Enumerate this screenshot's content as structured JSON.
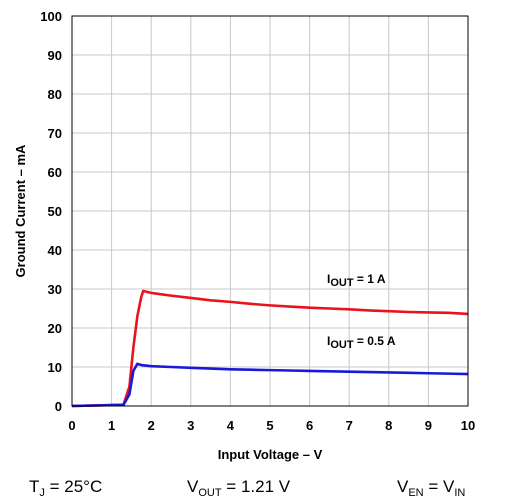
{
  "chart_data": {
    "type": "line",
    "xlabel": "Input Voltage – V",
    "ylabel": "Ground Current – mA",
    "xlim": [
      0,
      10
    ],
    "ylim": [
      0,
      100
    ],
    "x_ticks": [
      0,
      1,
      2,
      3,
      4,
      5,
      6,
      7,
      8,
      9,
      10
    ],
    "y_ticks": [
      0,
      10,
      20,
      30,
      40,
      50,
      60,
      70,
      80,
      90,
      100
    ],
    "grid": true,
    "series": [
      {
        "name_main": "I",
        "name_sub": "OUT",
        "name_rest": " = 1 A",
        "color": "#e8141b",
        "x": [
          0,
          1.3,
          1.45,
          1.55,
          1.65,
          1.75,
          1.8,
          2.0,
          2.5,
          3.0,
          3.5,
          4.0,
          4.5,
          5.0,
          5.5,
          6.0,
          6.5,
          7.0,
          7.5,
          8.0,
          8.5,
          9.0,
          9.5,
          10.0
        ],
        "y": [
          0,
          0.3,
          5,
          15,
          23,
          28,
          29.5,
          29.0,
          28.3,
          27.7,
          27.1,
          26.7,
          26.2,
          25.8,
          25.5,
          25.2,
          25.0,
          24.8,
          24.5,
          24.3,
          24.1,
          24.0,
          23.9,
          23.6
        ]
      },
      {
        "name_main": "I",
        "name_sub": "OUT",
        "name_rest": " = 0.5 A",
        "color": "#1a1ad6",
        "x": [
          0,
          1.3,
          1.45,
          1.55,
          1.65,
          1.75,
          2.0,
          2.5,
          3.0,
          3.5,
          4.0,
          4.5,
          5.0,
          5.5,
          6.0,
          6.5,
          7.0,
          7.5,
          8.0,
          8.5,
          9.0,
          9.5,
          10.0
        ],
        "y": [
          0,
          0.3,
          3,
          9,
          10.8,
          10.5,
          10.2,
          10.0,
          9.8,
          9.6,
          9.4,
          9.3,
          9.2,
          9.1,
          9.0,
          8.9,
          8.8,
          8.7,
          8.6,
          8.5,
          8.4,
          8.3,
          8.2
        ]
      }
    ]
  },
  "conditions": {
    "tj": {
      "main": "T",
      "sub": "J",
      "rest": " = 25°C"
    },
    "vout": {
      "main": "V",
      "sub": "OUT",
      "rest": " = 1.21 V"
    },
    "ven": {
      "main": "V",
      "sub": "EN",
      "rest": " = V",
      "sub2": "IN"
    }
  }
}
